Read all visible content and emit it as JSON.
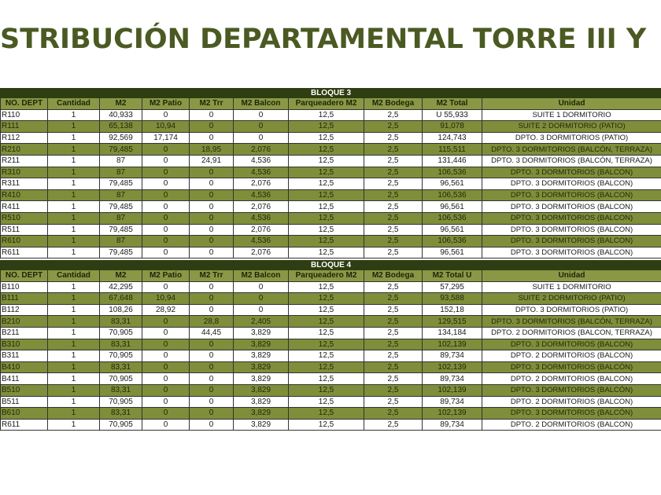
{
  "title": "STRIBUCIÓN DEPARTAMENTAL TORRE III Y",
  "colors": {
    "title": "#4a5a22",
    "block_header": "#2f3d12",
    "column_header": "#8a9845",
    "alt_row": "#7f8e3a"
  },
  "bloque3": {
    "label": "BLOQUE 3",
    "columns": [
      "NO. DEPT",
      "Cantidad",
      "M2",
      "M2 Patio",
      "M2 Trr",
      "M2 Balcon",
      "Parqueadero M2",
      "M2 Bodega",
      "M2 Total",
      "Unidad"
    ],
    "rows": [
      [
        "R110",
        "1",
        "40,933",
        "0",
        "0",
        "0",
        "12,5",
        "2,5",
        "U 55,933",
        "SUITE 1 DORMITORIO"
      ],
      [
        "R111",
        "1",
        "65,138",
        "10,94",
        "0",
        "0",
        "12,5",
        "2,5",
        "91,078",
        "SUITE 2 DORMITORIO (PATIO)"
      ],
      [
        "R112",
        "1",
        "92,569",
        "17,174",
        "0",
        "0",
        "12,5",
        "2,5",
        "124,743",
        "DPTO. 3 DORMITORIOS (PATIO)"
      ],
      [
        "R210",
        "1",
        "79,485",
        "0",
        "18,95",
        "2,076",
        "12,5",
        "2,5",
        "115,511",
        "DPTO. 3  DORMITORIOS  (BALCÓN, TERRAZA)"
      ],
      [
        "R211",
        "1",
        "87",
        "0",
        "24,91",
        "4,536",
        "12,5",
        "2,5",
        "131,446",
        "DPTO. 3 DORMITORIOS (BALCÓN, TERRAZA)"
      ],
      [
        "R310",
        "1",
        "87",
        "0",
        "0",
        "4,536",
        "12,5",
        "2,5",
        "106,536",
        "DPTO. 3 DORMITORIOS (BALCON)"
      ],
      [
        "R311",
        "1",
        "79,485",
        "0",
        "0",
        "2,076",
        "12,5",
        "2,5",
        "96,561",
        "DPTO. 3 DORMITORIOS (BALCON)"
      ],
      [
        "R410",
        "1",
        "87",
        "0",
        "0",
        "4,536",
        "12,5",
        "2,5",
        "106,536",
        "DPTO. 3 DORMITORIOS (BALCON)"
      ],
      [
        "R411",
        "1",
        "79,485",
        "0",
        "0",
        "2,076",
        "12,5",
        "2,5",
        "96,561",
        "DPTO. 3 DORMITORIOS (BALCON)"
      ],
      [
        "R510",
        "1",
        "87",
        "0",
        "0",
        "4,536",
        "12,5",
        "2,5",
        "106,536",
        "DPTO. 3 DORMITORIOS (BALCON)"
      ],
      [
        "R511",
        "1",
        "79,485",
        "0",
        "0",
        "2,076",
        "12,5",
        "2,5",
        "96,561",
        "DPTO. 3 DORMITORIOS (BALCON)"
      ],
      [
        "R610",
        "1",
        "87",
        "0",
        "0",
        "4,536",
        "12,5",
        "2,5",
        "106,536",
        "DPTO. 3 DORMITORIOS (BALCON)"
      ],
      [
        "R611",
        "1",
        "79,485",
        "0",
        "0",
        "2,076",
        "12,5",
        "2,5",
        "96,561",
        "DPTO. 3 DORMITORIOS (BALCON)"
      ]
    ]
  },
  "bloque4": {
    "label": "BLOQUE 4",
    "columns": [
      "NO. DEPT",
      "Cantidad",
      "M2",
      "M2 Patio",
      "M2 Trr",
      "M2 Balcon",
      "Parqueadero M2",
      "M2 Bodega",
      "M2 Total U",
      "Unidad"
    ],
    "rows": [
      [
        "B110",
        "1",
        "42,295",
        "0",
        "0",
        "0",
        "12,5",
        "2,5",
        "57,295",
        "SUITE 1 DORMITORIO"
      ],
      [
        "B111",
        "1",
        "67,648",
        "10,94",
        "0",
        "0",
        "12,5",
        "2,5",
        "93,588",
        "SUITE 2 DORMITORIO (PATIO)"
      ],
      [
        "B112",
        "1",
        "108,26",
        "28,92",
        "0",
        "0",
        "12,5",
        "2,5",
        "152,18",
        "DPTO. 3 DORMITORIOS (PATIO)"
      ],
      [
        "B210",
        "1",
        "83,31",
        "0",
        "28,8",
        "2,405",
        "12,5",
        "2,5",
        "129,515",
        "DPTO. 3 DORMITORIOS (BALCÓN, TERRAZA)"
      ],
      [
        "B211",
        "1",
        "70,905",
        "0",
        "44,45",
        "3,829",
        "12,5",
        "2,5",
        "134,184",
        "DPTO. 2 DORMITORIOS (BALCON, TERRAZA)"
      ],
      [
        "B310",
        "1",
        "83,31",
        "0",
        "0",
        "3,829",
        "12,5",
        "2,5",
        "102,139",
        "DPTO. 3 DORMITORIOS (BALCON)"
      ],
      [
        "B311",
        "1",
        "70,905",
        "0",
        "0",
        "3,829",
        "12,5",
        "2,5",
        "89,734",
        "DPTO. 2 DORMITORIOS (BALCON)"
      ],
      [
        "B410",
        "1",
        "83,31",
        "0",
        "0",
        "3,829",
        "12,5",
        "2,5",
        "102,139",
        "DPTO. 3 DORMITORIOS (BALCÓN)"
      ],
      [
        "B411",
        "1",
        "70,905",
        "0",
        "0",
        "3,829",
        "12,5",
        "2,5",
        "89,734",
        "DPTO. 2 DORMITORIOS (BALCON)"
      ],
      [
        "B510",
        "1",
        "83,31",
        "0",
        "0",
        "3,829",
        "12,5",
        "2,5",
        "102,139",
        "DPTO. 3 DORMITORIOS (BALCÓN)"
      ],
      [
        "B511",
        "1",
        "70,905",
        "0",
        "0",
        "3,829",
        "12,5",
        "2,5",
        "89,734",
        "DPTO. 2 DORMITORIOS (BALCON)"
      ],
      [
        "B610",
        "1",
        "83,31",
        "0",
        "0",
        "3,829",
        "12,5",
        "2,5",
        "102,139",
        "DPTO. 3 DORMITORIOS (BALCÓN)"
      ],
      [
        "R611",
        "1",
        "70,905",
        "0",
        "0",
        "3,829",
        "12,5",
        "2,5",
        "89,734",
        "DPTO. 2 DORMITORIOS (BALCON)"
      ]
    ]
  }
}
